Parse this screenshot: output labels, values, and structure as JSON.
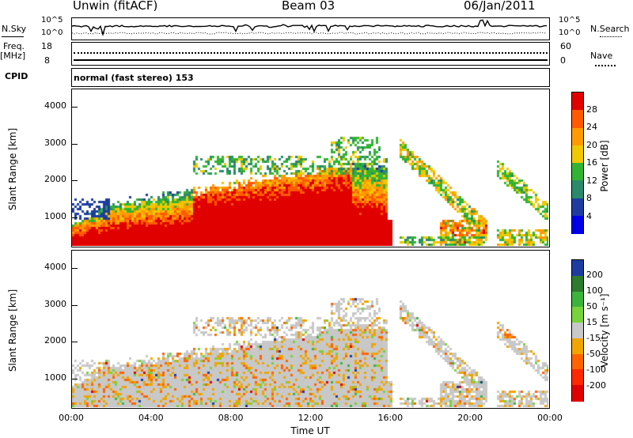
{
  "header": {
    "radar": "Unwin (fitACF)",
    "beam": "Beam 03",
    "date": "06/Jan/2011"
  },
  "noise_panel": {
    "left_label": "N.Sky",
    "left_top": "10^5",
    "left_bottom": "10^0",
    "right_top": "10^5",
    "right_bottom": "10^0",
    "right_label": "N.Search"
  },
  "freq_panel": {
    "left_label_1": "Freq.",
    "left_label_2": "[MHz]",
    "left_top": "18",
    "left_bottom": "8",
    "right_top": "60",
    "right_bottom": "0",
    "right_label": "Nave"
  },
  "cpid": {
    "label": "CPID",
    "value": "normal (fast stereo) 153"
  },
  "chart_data": [
    {
      "type": "heatmap",
      "name": "power",
      "ylabel": "Slant Range [km]",
      "xlabel": "",
      "ylim": [
        180,
        4500
      ],
      "yticks": [
        "4000",
        "3000",
        "2000",
        "1000"
      ],
      "colorbar": {
        "label": "Power [dB]",
        "ticks": [
          "28",
          "24",
          "20",
          "16",
          "12",
          "8",
          "4"
        ],
        "colors": [
          "#e00000",
          "#ff5a00",
          "#ff9a00",
          "#f0c800",
          "#32b432",
          "#2a8a6a",
          "#1e3ca0",
          "#0000e6"
        ]
      }
    },
    {
      "type": "heatmap",
      "name": "velocity",
      "ylabel": "Slant Range [km]",
      "xlabel": "Time UT",
      "ylim": [
        180,
        4500
      ],
      "yticks": [
        "4000",
        "3000",
        "2000",
        "1000"
      ],
      "xticks": [
        "00:00",
        "04:00",
        "08:00",
        "12:00",
        "16:00",
        "20:00",
        "00:00"
      ],
      "colorbar": {
        "label": "Velocity [m s⁻¹]",
        "ticks": [
          "200",
          "100",
          "50",
          "15",
          "-15",
          "-50",
          "-100",
          "-200"
        ],
        "colors": [
          "#1e3ca0",
          "#2e7a2e",
          "#3cb43c",
          "#78d23c",
          "#c8c8c8",
          "#f0a500",
          "#ff6400",
          "#ff2800",
          "#e00000"
        ]
      }
    }
  ]
}
